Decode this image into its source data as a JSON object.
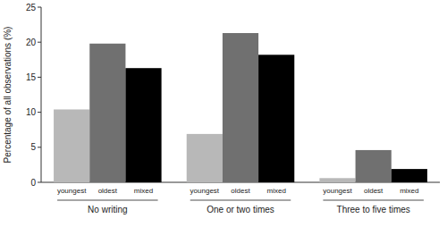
{
  "chart_data": {
    "type": "bar",
    "y_label": "Percentage of all observations (%)",
    "categories": [
      "No writing",
      "One or two times",
      "Three to five times"
    ],
    "series": [
      {
        "name": "youngest",
        "color": "#b8b8b8",
        "values": [
          10.4,
          6.9,
          0.6
        ]
      },
      {
        "name": "oldest",
        "color": "#707070",
        "values": [
          19.8,
          21.3,
          4.6
        ]
      },
      {
        "name": "mixed",
        "color": "#000000",
        "values": [
          16.3,
          18.2,
          1.9
        ]
      }
    ],
    "ylim": [
      0,
      25
    ],
    "yticks": [
      0,
      5,
      10,
      15,
      20,
      25
    ]
  }
}
